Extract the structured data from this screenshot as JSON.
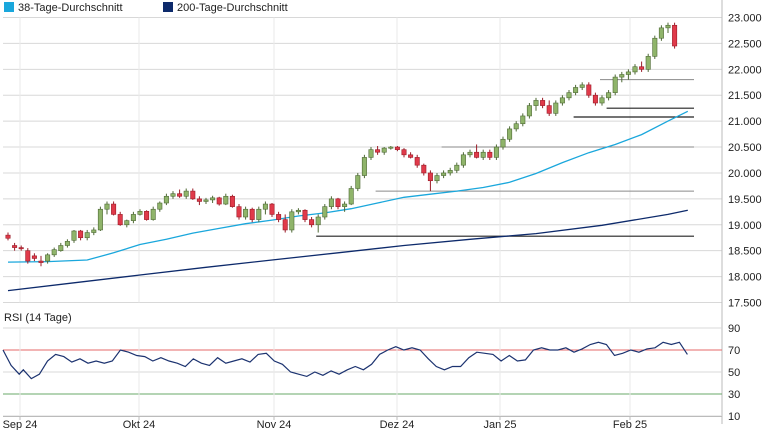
{
  "legend": [
    {
      "label": "38-Tage-Durchschnitt",
      "color": "#1aa7dc"
    },
    {
      "label": "200-Tage-Durchschnitt",
      "color": "#0d2a6b"
    }
  ],
  "rsi": {
    "title": "RSI (14 Tage)",
    "overbought": 70,
    "oversold": 30,
    "ticks": [
      "90",
      "70",
      "50",
      "30",
      "10"
    ]
  },
  "colors": {
    "up": "#8fb46a",
    "up_edge": "#4f6a36",
    "down": "#e03a4a",
    "down_edge": "#9b1c28",
    "ma38": "#1aa7dc",
    "ma200": "#0d2a6b",
    "rsi_line": "#1c3370",
    "ob_line": "#e46a6a",
    "os_line": "#6aa86a",
    "grid": "#d8d8d8",
    "level": "#8a8a8a",
    "support": "#222222"
  },
  "chart_data": {
    "type": "candlestick",
    "x_labels": [
      "Sep 24",
      "Okt 24",
      "Nov 24",
      "Dez 24",
      "Jan 25",
      "Feb 25"
    ],
    "y_ticks": [
      "23.000",
      "22.500",
      "22.000",
      "21.500",
      "21.000",
      "20.500",
      "20.000",
      "19.500",
      "19.000",
      "18.500",
      "18.000",
      "17.500"
    ],
    "ylim": [
      17500,
      23000
    ],
    "rsi_ylim": [
      10,
      90
    ],
    "ohlc": [
      [
        18800,
        18850,
        18700,
        18740
      ],
      [
        18600,
        18650,
        18500,
        18560
      ],
      [
        18560,
        18600,
        18500,
        18540
      ],
      [
        18500,
        18550,
        18250,
        18300
      ],
      [
        18400,
        18450,
        18300,
        18350
      ],
      [
        18300,
        18400,
        18200,
        18270
      ],
      [
        18300,
        18450,
        18250,
        18420
      ],
      [
        18420,
        18560,
        18380,
        18520
      ],
      [
        18500,
        18650,
        18480,
        18600
      ],
      [
        18600,
        18720,
        18560,
        18680
      ],
      [
        18700,
        18900,
        18650,
        18880
      ],
      [
        18880,
        18900,
        18700,
        18750
      ],
      [
        18750,
        18900,
        18700,
        18850
      ],
      [
        18850,
        18950,
        18800,
        18900
      ],
      [
        18900,
        19350,
        18880,
        19300
      ],
      [
        19300,
        19450,
        19200,
        19400
      ],
      [
        19400,
        19450,
        19180,
        19200
      ],
      [
        19200,
        19250,
        18980,
        19000
      ],
      [
        19000,
        19100,
        18950,
        19080
      ],
      [
        19080,
        19250,
        19030,
        19200
      ],
      [
        19200,
        19300,
        19180,
        19260
      ],
      [
        19260,
        19280,
        19080,
        19100
      ],
      [
        19100,
        19350,
        19080,
        19300
      ],
      [
        19300,
        19450,
        19250,
        19420
      ],
      [
        19420,
        19600,
        19380,
        19550
      ],
      [
        19550,
        19650,
        19500,
        19600
      ],
      [
        19600,
        19680,
        19520,
        19550
      ],
      [
        19550,
        19700,
        19500,
        19650
      ],
      [
        19650,
        19700,
        19480,
        19500
      ],
      [
        19500,
        19550,
        19380,
        19450
      ],
      [
        19450,
        19520,
        19400,
        19480
      ],
      [
        19480,
        19560,
        19420,
        19520
      ],
      [
        19520,
        19540,
        19370,
        19400
      ],
      [
        19400,
        19600,
        19380,
        19550
      ],
      [
        19550,
        19580,
        19330,
        19350
      ],
      [
        19350,
        19400,
        19100,
        19150
      ],
      [
        19150,
        19350,
        19100,
        19300
      ],
      [
        19300,
        19330,
        19050,
        19100
      ],
      [
        19100,
        19350,
        19050,
        19300
      ],
      [
        19300,
        19450,
        19200,
        19400
      ],
      [
        19400,
        19420,
        19150,
        19200
      ],
      [
        19200,
        19250,
        19050,
        19100
      ],
      [
        19100,
        19200,
        18850,
        18900
      ],
      [
        18900,
        19300,
        18850,
        19250
      ],
      [
        19250,
        19320,
        19200,
        19280
      ],
      [
        19280,
        19300,
        19050,
        19100
      ],
      [
        19100,
        19150,
        18950,
        19000
      ],
      [
        19000,
        19200,
        18850,
        19150
      ],
      [
        19150,
        19400,
        19100,
        19350
      ],
      [
        19350,
        19550,
        19300,
        19500
      ],
      [
        19500,
        19520,
        19300,
        19350
      ],
      [
        19350,
        19450,
        19250,
        19400
      ],
      [
        19400,
        19750,
        19380,
        19700
      ],
      [
        19700,
        20000,
        19650,
        19950
      ],
      [
        19950,
        20350,
        19900,
        20300
      ],
      [
        20300,
        20500,
        20250,
        20450
      ],
      [
        20450,
        20520,
        20350,
        20400
      ],
      [
        20400,
        20500,
        20350,
        20480
      ],
      [
        20480,
        20520,
        20450,
        20500
      ],
      [
        20500,
        20520,
        20420,
        20450
      ],
      [
        20450,
        20480,
        20300,
        20350
      ],
      [
        20350,
        20400,
        20280,
        20300
      ],
      [
        20300,
        20350,
        20100,
        20150
      ],
      [
        20150,
        20180,
        19950,
        20000
      ],
      [
        20000,
        20050,
        19650,
        19850
      ],
      [
        19850,
        20000,
        19800,
        19950
      ],
      [
        19950,
        20050,
        19900,
        20000
      ],
      [
        20000,
        20100,
        19950,
        20050
      ],
      [
        20050,
        20200,
        20000,
        20150
      ],
      [
        20150,
        20400,
        20100,
        20350
      ],
      [
        20350,
        20450,
        20300,
        20400
      ],
      [
        20400,
        20550,
        20280,
        20300
      ],
      [
        20300,
        20450,
        20250,
        20400
      ],
      [
        20400,
        20450,
        20250,
        20300
      ],
      [
        20300,
        20550,
        20250,
        20500
      ],
      [
        20500,
        20700,
        20450,
        20650
      ],
      [
        20650,
        20900,
        20600,
        20850
      ],
      [
        20850,
        21000,
        20800,
        20950
      ],
      [
        20950,
        21150,
        20900,
        21100
      ],
      [
        21100,
        21350,
        21050,
        21300
      ],
      [
        21300,
        21450,
        21200,
        21400
      ],
      [
        21400,
        21450,
        21250,
        21300
      ],
      [
        21300,
        21400,
        21100,
        21150
      ],
      [
        21150,
        21400,
        21100,
        21350
      ],
      [
        21350,
        21500,
        21300,
        21450
      ],
      [
        21450,
        21600,
        21400,
        21550
      ],
      [
        21550,
        21700,
        21500,
        21650
      ],
      [
        21650,
        21750,
        21600,
        21700
      ],
      [
        21700,
        21750,
        21450,
        21500
      ],
      [
        21500,
        21550,
        21300,
        21350
      ],
      [
        21350,
        21500,
        21300,
        21450
      ],
      [
        21450,
        21600,
        21400,
        21550
      ],
      [
        21550,
        21900,
        21500,
        21850
      ],
      [
        21850,
        21950,
        21750,
        21900
      ],
      [
        21900,
        22000,
        21800,
        21950
      ],
      [
        21950,
        22100,
        21900,
        22050
      ],
      [
        22050,
        22150,
        21950,
        22000
      ],
      [
        22000,
        22300,
        21950,
        22250
      ],
      [
        22250,
        22650,
        22200,
        22600
      ],
      [
        22600,
        22850,
        22550,
        22800
      ],
      [
        22800,
        22900,
        22700,
        22850
      ],
      [
        22850,
        22900,
        22400,
        22450
      ]
    ],
    "ma38": [
      [
        0,
        18280
      ],
      [
        6,
        18290
      ],
      [
        12,
        18320
      ],
      [
        16,
        18460
      ],
      [
        20,
        18620
      ],
      [
        24,
        18720
      ],
      [
        28,
        18840
      ],
      [
        32,
        18930
      ],
      [
        36,
        19020
      ],
      [
        40,
        19090
      ],
      [
        44,
        19170
      ],
      [
        48,
        19230
      ],
      [
        52,
        19310
      ],
      [
        56,
        19420
      ],
      [
        60,
        19530
      ],
      [
        64,
        19590
      ],
      [
        68,
        19650
      ],
      [
        72,
        19720
      ],
      [
        76,
        19820
      ],
      [
        80,
        19990
      ],
      [
        84,
        20200
      ],
      [
        88,
        20390
      ],
      [
        92,
        20550
      ],
      [
        96,
        20740
      ],
      [
        100,
        21000
      ],
      [
        103,
        21190
      ]
    ],
    "ma200": [
      [
        0,
        17730
      ],
      [
        10,
        17880
      ],
      [
        20,
        18030
      ],
      [
        30,
        18180
      ],
      [
        40,
        18320
      ],
      [
        50,
        18460
      ],
      [
        60,
        18600
      ],
      [
        70,
        18720
      ],
      [
        80,
        18830
      ],
      [
        90,
        18990
      ],
      [
        100,
        19200
      ],
      [
        103,
        19280
      ]
    ],
    "support_levels": [
      {
        "value": 21800,
        "from": 90,
        "to": 104,
        "type": "resistance"
      },
      {
        "value": 21250,
        "from": 91,
        "to": 104,
        "type": "support"
      },
      {
        "value": 21080,
        "from": 86,
        "to": 104,
        "type": "support"
      },
      {
        "value": 20500,
        "from": 66,
        "to": 104,
        "type": "resistance"
      },
      {
        "value": 19650,
        "from": 56,
        "to": 104,
        "type": "resistance"
      },
      {
        "value": 18780,
        "from": 47,
        "to": 104,
        "type": "support"
      }
    ],
    "rsi": [
      [
        0,
        70
      ],
      [
        2,
        56
      ],
      [
        4,
        48
      ],
      [
        5,
        52
      ],
      [
        7,
        44
      ],
      [
        9,
        48
      ],
      [
        11,
        60
      ],
      [
        13,
        66
      ],
      [
        15,
        64
      ],
      [
        17,
        59
      ],
      [
        19,
        62
      ],
      [
        21,
        58
      ],
      [
        23,
        60
      ],
      [
        25,
        58
      ],
      [
        27,
        60
      ],
      [
        29,
        70
      ],
      [
        31,
        68
      ],
      [
        33,
        65
      ],
      [
        35,
        64
      ],
      [
        37,
        60
      ],
      [
        39,
        63
      ],
      [
        41,
        60
      ],
      [
        43,
        58
      ],
      [
        45,
        55
      ],
      [
        47,
        62
      ],
      [
        49,
        58
      ],
      [
        51,
        56
      ],
      [
        53,
        63
      ],
      [
        55,
        58
      ],
      [
        57,
        60
      ],
      [
        59,
        62
      ],
      [
        61,
        59
      ],
      [
        63,
        66
      ],
      [
        65,
        67
      ],
      [
        67,
        60
      ],
      [
        69,
        57
      ],
      [
        71,
        50
      ],
      [
        73,
        48
      ],
      [
        75,
        46
      ],
      [
        77,
        50
      ],
      [
        79,
        47
      ],
      [
        81,
        51
      ],
      [
        83,
        48
      ],
      [
        85,
        52
      ],
      [
        87,
        55
      ],
      [
        89,
        52
      ],
      [
        91,
        57
      ],
      [
        93,
        66
      ],
      [
        95,
        70
      ],
      [
        97,
        73
      ],
      [
        99,
        70
      ],
      [
        101,
        72
      ],
      [
        103,
        70
      ],
      [
        105,
        62
      ],
      [
        107,
        55
      ],
      [
        109,
        52
      ],
      [
        111,
        55
      ],
      [
        113,
        55
      ],
      [
        115,
        63
      ],
      [
        117,
        68
      ],
      [
        119,
        67
      ],
      [
        121,
        66
      ],
      [
        123,
        60
      ],
      [
        125,
        65
      ],
      [
        127,
        60
      ],
      [
        129,
        61
      ],
      [
        131,
        70
      ],
      [
        133,
        72
      ],
      [
        135,
        70
      ],
      [
        137,
        70
      ],
      [
        139,
        72
      ],
      [
        141,
        68
      ],
      [
        143,
        71
      ],
      [
        145,
        75
      ],
      [
        147,
        77
      ],
      [
        149,
        75
      ],
      [
        151,
        65
      ],
      [
        153,
        67
      ],
      [
        155,
        70
      ],
      [
        157,
        68
      ],
      [
        159,
        71
      ],
      [
        161,
        72
      ],
      [
        163,
        77
      ],
      [
        165,
        75
      ],
      [
        167,
        77
      ],
      [
        169,
        66
      ]
    ]
  }
}
